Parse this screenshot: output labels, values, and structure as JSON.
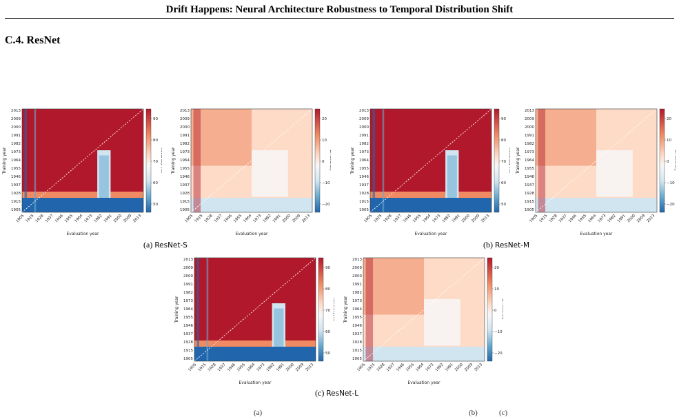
{
  "header": {
    "running_title": "Drift Happens: Neural Architecture Robustness to Temporal Distribution Shift"
  },
  "section": {
    "title": "C.4. ResNet"
  },
  "axes": {
    "training_year_label": "Training year",
    "evaluation_year_label": "Evaluation year",
    "y_ticks": [
      "2013",
      "2009",
      "2000",
      "1991",
      "1982",
      "1973",
      "1964",
      "1955",
      "1946",
      "1937",
      "1928",
      "1915",
      "1905"
    ],
    "x_ticks": [
      "1905",
      "1915",
      "1928",
      "1937",
      "1946",
      "1955",
      "1964",
      "1973",
      "1982",
      "1991",
      "2000",
      "2009",
      "2013"
    ],
    "acc_colorbar_label": "Accuracy (%)",
    "acc_colorbar_label_alt": "Accuracy(%)",
    "acc_colorbar_ticks": [
      "90",
      "80",
      "70",
      "60",
      "50"
    ],
    "delta_colorbar_label": "Δ Accuracy",
    "delta_colorbar_ticks": [
      "20",
      "10",
      "0",
      "−10",
      "−20"
    ]
  },
  "figures": [
    {
      "label": "(a)",
      "model": "ResNet-S"
    },
    {
      "label": "(b)",
      "model": "ResNet-M"
    },
    {
      "label": "(c)",
      "model": "ResNet-L"
    }
  ],
  "footer": {
    "fragment_1": "(a)",
    "fragment_2": "(b)",
    "fragment_3": "(c)"
  },
  "colors": {
    "hot": "#b2182b",
    "warm": "#ef8a62",
    "light": "#fddbc7",
    "cool": "#d1e5f0",
    "mid_blue": "#67a9cf",
    "cold": "#2166ac"
  }
}
